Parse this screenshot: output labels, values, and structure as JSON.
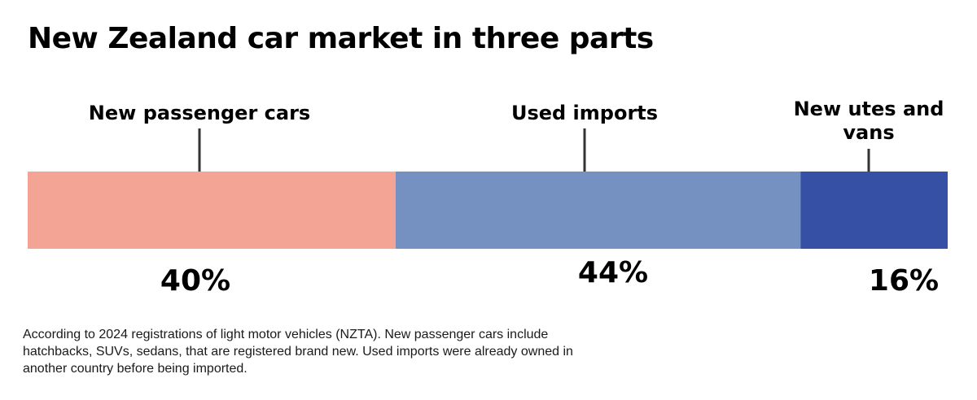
{
  "title": "New Zealand car market in three parts",
  "note": "According to 2024 registrations of light motor vehicles (NZTA). New passenger cars include hatchbacks, SUVs, sedans, that are registered brand new. Used imports were already owned in another country before being imported.",
  "chart_data": {
    "type": "bar",
    "orientation": "horizontal-stacked",
    "categories": [
      "New passenger cars",
      "Used imports",
      "New utes and vans"
    ],
    "label_lines": [
      [
        "New passenger cars"
      ],
      [
        "Used imports"
      ],
      [
        "New utes and",
        "vans"
      ]
    ],
    "values": [
      40,
      44,
      16
    ],
    "value_labels": [
      "40%",
      "44%",
      "16%"
    ],
    "colors": [
      "#f4a494",
      "#7491c1",
      "#3650a6"
    ],
    "xlim": [
      0,
      100
    ],
    "grid": false,
    "legend": "none"
  }
}
